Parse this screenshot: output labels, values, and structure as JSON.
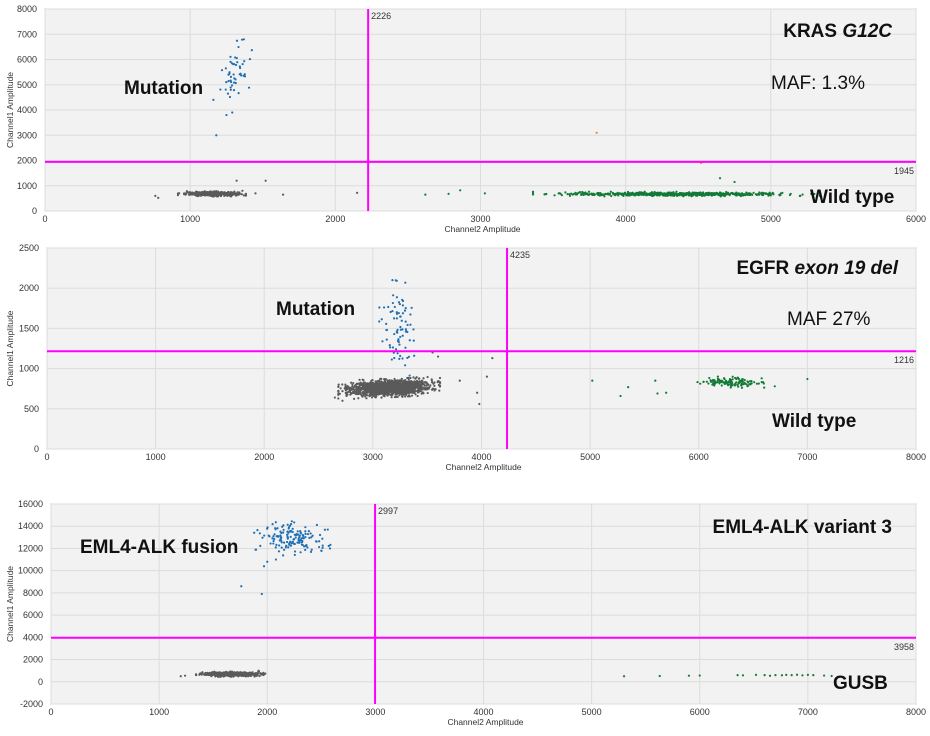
{
  "colors": {
    "plot_bg": "#f2f2f2",
    "grid": "#dcdcdc",
    "threshold": "#ff00ff",
    "negative": "#5a5a5a",
    "channel1_positive": "#1f6fb4",
    "channel2_positive": "#137a37",
    "double_positive": "#f08a3c"
  },
  "chart_data": [
    {
      "type": "scatter",
      "xlabel": "Channel2 Amplitude",
      "ylabel": "Channel1 Amplitude",
      "xlim": [
        0,
        6000
      ],
      "ylim": [
        0,
        8000
      ],
      "xticks": [
        0,
        1000,
        2000,
        3000,
        4000,
        5000,
        6000
      ],
      "yticks": [
        0,
        1000,
        2000,
        3000,
        4000,
        5000,
        6000,
        7000,
        8000
      ],
      "threshold_x": 2226,
      "threshold_y": 1945,
      "threshold_x_label": "2226",
      "threshold_y_label": "1945",
      "annotations": {
        "title_plain": "KRAS ",
        "title_italic": "G12C",
        "maf": "MAF: 1.3%",
        "mutation": "Mutation",
        "wild_type": "Wild type"
      },
      "clusters": [
        {
          "class": "negative",
          "cx": 1150,
          "cy": 680,
          "sx": 90,
          "sy": 40,
          "n": 450
        },
        {
          "class": "channel2_positive",
          "cx": 4350,
          "cy": 670,
          "sx": 380,
          "sy": 35,
          "n": 650
        },
        {
          "class": "channel1_positive",
          "cx": 1320,
          "cy": 5500,
          "sx": 55,
          "sy": 650,
          "n": 48
        }
      ],
      "points": {
        "negative": [
          [
            760,
            600
          ],
          [
            780,
            520
          ],
          [
            1320,
            1200
          ],
          [
            1360,
            800
          ],
          [
            1450,
            700
          ],
          [
            1520,
            1200
          ],
          [
            1640,
            650
          ],
          [
            2150,
            720
          ]
        ],
        "channel2_positive": [
          [
            2620,
            650
          ],
          [
            2780,
            680
          ],
          [
            2860,
            820
          ],
          [
            3030,
            700
          ],
          [
            5000,
            620
          ],
          [
            4750,
            1150
          ],
          [
            4650,
            1300
          ],
          [
            5200,
            600
          ]
        ],
        "channel1_positive": [
          [
            1180,
            3000
          ],
          [
            1250,
            3800
          ],
          [
            1290,
            3900
          ],
          [
            1160,
            4400
          ],
          [
            1280,
            4800
          ],
          [
            1370,
            6800
          ]
        ],
        "double_positive": [
          [
            3800,
            3100
          ],
          [
            4520,
            1900
          ]
        ]
      }
    },
    {
      "type": "scatter",
      "xlabel": "Channel2 Amplitude",
      "ylabel": "Channel1 Amplitude",
      "xlim": [
        0,
        8000
      ],
      "ylim": [
        0,
        2500
      ],
      "xticks": [
        0,
        1000,
        2000,
        3000,
        4000,
        5000,
        6000,
        7000,
        8000
      ],
      "yticks": [
        0,
        500,
        1000,
        1500,
        2000,
        2500
      ],
      "threshold_x": 4235,
      "threshold_y": 1216,
      "threshold_x_label": "4235",
      "threshold_y_label": "1216",
      "annotations": {
        "title_plain": "EGFR ",
        "title_italic": "exon 19 del",
        "maf": "MAF 27%",
        "mutation": "Mutation",
        "wild_type": "Wild type"
      },
      "clusters": [
        {
          "class": "negative",
          "cx": 3150,
          "cy": 760,
          "sx": 180,
          "sy": 45,
          "n": 1500
        },
        {
          "class": "channel2_positive",
          "cx": 6280,
          "cy": 830,
          "sx": 140,
          "sy": 28,
          "n": 130
        },
        {
          "class": "channel1_positive",
          "cx": 3230,
          "cy": 1500,
          "sx": 70,
          "sy": 230,
          "n": 75
        }
      ],
      "points": {
        "negative": [
          [
            2650,
            640
          ],
          [
            2720,
            600
          ],
          [
            3600,
            840
          ],
          [
            3800,
            850
          ],
          [
            3960,
            700
          ],
          [
            3980,
            560
          ],
          [
            4050,
            900
          ],
          [
            4100,
            1130
          ],
          [
            3550,
            1200
          ],
          [
            3600,
            1150
          ]
        ],
        "channel2_positive": [
          [
            5020,
            850
          ],
          [
            5280,
            660
          ],
          [
            5350,
            770
          ],
          [
            5600,
            850
          ],
          [
            5620,
            690
          ],
          [
            5700,
            700
          ],
          [
            7000,
            870
          ],
          [
            6700,
            780
          ]
        ],
        "channel1_positive": [
          [
            3060,
            1760
          ],
          [
            3180,
            2100
          ],
          [
            3300,
            1260
          ],
          [
            3380,
            1160
          ]
        ],
        "double_positive": []
      }
    },
    {
      "type": "scatter",
      "xlabel": "Channel2 Amplitude",
      "ylabel": "Channel1 Amplitude",
      "xlim": [
        0,
        8000
      ],
      "ylim": [
        -2000,
        16000
      ],
      "xticks": [
        0,
        1000,
        2000,
        3000,
        4000,
        5000,
        6000,
        7000,
        8000
      ],
      "yticks": [
        -2000,
        0,
        2000,
        4000,
        6000,
        8000,
        10000,
        12000,
        14000,
        16000
      ],
      "threshold_x": 2997,
      "threshold_y": 3958,
      "threshold_x_label": "2997",
      "threshold_y_label": "3958",
      "annotations": {
        "title_plain": "EML4-ALK variant 3",
        "title_italic": "",
        "maf": "",
        "mutation": "EML4-ALK fusion",
        "wild_type": "GUSB"
      },
      "clusters": [
        {
          "class": "negative",
          "cx": 1680,
          "cy": 680,
          "sx": 130,
          "sy": 90,
          "n": 600
        },
        {
          "class": "channel1_positive",
          "cx": 2220,
          "cy": 12900,
          "sx": 140,
          "sy": 650,
          "n": 150
        }
      ],
      "points": {
        "negative": [
          [
            1200,
            500
          ],
          [
            1240,
            550
          ],
          [
            1920,
            1000
          ],
          [
            1960,
            700
          ]
        ],
        "channel2_positive": [
          [
            5300,
            500
          ],
          [
            5630,
            520
          ],
          [
            5900,
            550
          ],
          [
            6000,
            560
          ],
          [
            6350,
            600
          ],
          [
            6400,
            580
          ],
          [
            6520,
            620
          ],
          [
            6600,
            600
          ],
          [
            6650,
            540
          ],
          [
            6700,
            600
          ],
          [
            6760,
            590
          ],
          [
            6800,
            620
          ],
          [
            6850,
            600
          ],
          [
            6900,
            630
          ],
          [
            6950,
            580
          ],
          [
            7000,
            620
          ],
          [
            7050,
            600
          ],
          [
            7150,
            560
          ],
          [
            7220,
            520
          ]
        ],
        "channel1_positive": [
          [
            1760,
            8600
          ],
          [
            1950,
            7900
          ],
          [
            1970,
            10400
          ],
          [
            2000,
            10800
          ],
          [
            2500,
            11800
          ],
          [
            2580,
            12000
          ],
          [
            2560,
            13700
          ],
          [
            2080,
            11000
          ]
        ],
        "double_positive": []
      }
    }
  ]
}
